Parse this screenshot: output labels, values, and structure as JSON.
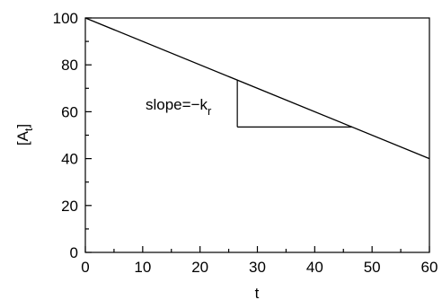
{
  "chart_data": {
    "type": "line",
    "title": "",
    "xlabel": "t",
    "ylabel": "[A",
    "ylabel_subscript": "t",
    "ylabel_suffix": "]",
    "xlim": [
      0,
      60
    ],
    "ylim": [
      0,
      100
    ],
    "xticks": [
      "0",
      "10",
      "20",
      "30",
      "40",
      "50",
      "60"
    ],
    "yticks": [
      "0",
      "20",
      "40",
      "60",
      "80",
      "100"
    ],
    "grid": false,
    "legend": "none",
    "series": [
      {
        "x": [
          0,
          60
        ],
        "y": [
          100,
          40
        ]
      }
    ],
    "slope_triangle": {
      "x_start": 26.5,
      "x_end": 46.5,
      "y_top": 73.5,
      "y_bottom": 53.5
    },
    "annotation": {
      "text": "slope=−k",
      "subscript": "r"
    },
    "line_color": "#000000"
  }
}
